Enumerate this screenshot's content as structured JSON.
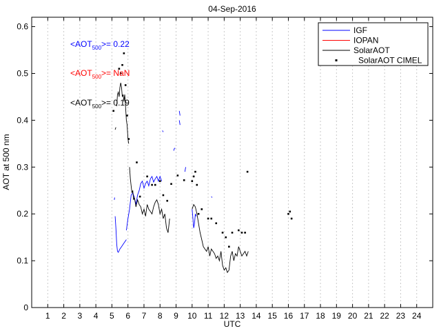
{
  "chart_data": {
    "type": "line",
    "title": "04-Sep-2016",
    "xlabel": "UTC",
    "ylabel": "AOT at 500 nm",
    "xlim": [
      0,
      25
    ],
    "ylim": [
      0,
      0.62
    ],
    "xticks": [
      1,
      2,
      3,
      4,
      5,
      6,
      7,
      8,
      9,
      10,
      11,
      12,
      13,
      14,
      15,
      16,
      17,
      18,
      19,
      20,
      21,
      22,
      23,
      24
    ],
    "yticks": [
      0,
      0.1,
      0.2,
      0.3,
      0.4,
      0.5,
      0.6
    ],
    "ytick_labels": [
      "0",
      "0.1",
      "0.2",
      "0.3",
      "0.4",
      "0.5",
      "0.6"
    ],
    "grid": "vertical dashed",
    "legend_position": "top-right",
    "series": [
      {
        "name": "IGF",
        "color": "#0000ff",
        "style": "line",
        "segments": [
          [
            [
              5.15,
              0.23
            ],
            [
              5.17,
              0.235
            ]
          ],
          [
            [
              5.2,
              0.195
            ],
            [
              5.25,
              0.17
            ],
            [
              5.3,
              0.135
            ],
            [
              5.35,
              0.12
            ],
            [
              5.4,
              0.118
            ],
            [
              5.5,
              0.125
            ],
            [
              5.6,
              0.13
            ],
            [
              5.7,
              0.135
            ],
            [
              5.8,
              0.14
            ],
            [
              5.9,
              0.145
            ]
          ],
          [
            [
              5.9,
              0.165
            ],
            [
              6.0,
              0.19
            ],
            [
              6.1,
              0.21
            ],
            [
              6.2,
              0.24
            ],
            [
              6.3,
              0.245
            ],
            [
              6.4,
              0.235
            ],
            [
              6.5,
              0.22
            ],
            [
              6.6,
              0.24
            ],
            [
              6.7,
              0.25
            ],
            [
              6.8,
              0.265
            ],
            [
              6.9,
              0.27
            ],
            [
              7.0,
              0.255
            ],
            [
              7.1,
              0.265
            ],
            [
              7.2,
              0.27
            ],
            [
              7.3,
              0.26
            ],
            [
              7.4,
              0.275
            ],
            [
              7.5,
              0.28
            ],
            [
              7.6,
              0.268
            ],
            [
              7.7,
              0.275
            ],
            [
              7.8,
              0.28
            ],
            [
              7.9,
              0.27
            ],
            [
              8.0,
              0.28
            ],
            [
              8.1,
              0.27
            ]
          ],
          [
            [
              8.15,
              0.378
            ],
            [
              8.2,
              0.375
            ]
          ],
          [
            [
              8.85,
              0.335
            ],
            [
              8.9,
              0.34
            ],
            [
              8.95,
              0.34
            ]
          ],
          [
            [
              9.2,
              0.42
            ],
            [
              9.25,
              0.41
            ]
          ],
          [
            [
              9.2,
              0.4
            ],
            [
              9.25,
              0.39
            ]
          ],
          [
            [
              9.55,
              0.29
            ],
            [
              9.6,
              0.3
            ]
          ],
          [
            [
              10.0,
              0.21
            ],
            [
              10.05,
              0.19
            ],
            [
              10.1,
              0.17
            ],
            [
              10.15,
              0.18
            ],
            [
              10.2,
              0.2
            ],
            [
              10.25,
              0.195
            ]
          ],
          [
            [
              11.2,
              0.237
            ],
            [
              11.25,
              0.235
            ]
          ]
        ]
      },
      {
        "name": "IOPAN",
        "color": "#ff0000",
        "style": "line",
        "segments": []
      },
      {
        "name": "SolarAOT",
        "color": "#000000",
        "style": "line",
        "segments": [
          [
            [
              5.2,
              0.38
            ],
            [
              5.25,
              0.385
            ]
          ],
          [
            [
              5.3,
              0.43
            ],
            [
              5.35,
              0.455
            ],
            [
              5.4,
              0.46
            ],
            [
              5.45,
              0.45
            ],
            [
              5.5,
              0.47
            ],
            [
              5.55,
              0.48
            ],
            [
              5.6,
              0.47
            ],
            [
              5.65,
              0.45
            ],
            [
              5.7,
              0.455
            ],
            [
              5.75,
              0.44
            ],
            [
              5.8,
              0.455
            ],
            [
              5.85,
              0.43
            ],
            [
              5.9,
              0.4
            ],
            [
              5.95,
              0.39
            ],
            [
              6.0,
              0.36
            ],
            [
              6.05,
              0.35
            ]
          ],
          [
            [
              6.1,
              0.3
            ],
            [
              6.15,
              0.275
            ],
            [
              6.2,
              0.26
            ],
            [
              6.25,
              0.245
            ],
            [
              6.3,
              0.25
            ],
            [
              6.35,
              0.23
            ],
            [
              6.4,
              0.235
            ],
            [
              6.45,
              0.225
            ],
            [
              6.5,
              0.215
            ],
            [
              6.6,
              0.23
            ],
            [
              6.7,
              0.22
            ],
            [
              6.8,
              0.215
            ],
            [
              6.9,
              0.2
            ],
            [
              7.0,
              0.21
            ],
            [
              7.1,
              0.195
            ],
            [
              7.2,
              0.22
            ],
            [
              7.3,
              0.21
            ],
            [
              7.4,
              0.205
            ],
            [
              7.5,
              0.2
            ],
            [
              7.6,
              0.215
            ],
            [
              7.7,
              0.225
            ],
            [
              7.8,
              0.23
            ],
            [
              7.9,
              0.22
            ],
            [
              8.0,
              0.2
            ],
            [
              8.1,
              0.21
            ],
            [
              8.2,
              0.19
            ],
            [
              8.3,
              0.2
            ],
            [
              8.4,
              0.17
            ],
            [
              8.5,
              0.16
            ],
            [
              8.6,
              0.19
            ]
          ],
          [
            [
              10.0,
              0.21
            ],
            [
              10.1,
              0.22
            ],
            [
              10.2,
              0.215
            ],
            [
              10.3,
              0.2
            ],
            [
              10.4,
              0.18
            ],
            [
              10.5,
              0.16
            ],
            [
              10.6,
              0.145
            ],
            [
              10.7,
              0.13
            ],
            [
              10.8,
              0.125
            ],
            [
              10.9,
              0.12
            ],
            [
              11.0,
              0.13
            ],
            [
              11.1,
              0.11
            ],
            [
              11.2,
              0.125
            ],
            [
              11.3,
              0.12
            ],
            [
              11.4,
              0.115
            ],
            [
              11.5,
              0.105
            ],
            [
              11.6,
              0.11
            ],
            [
              11.7,
              0.1
            ],
            [
              11.8,
              0.12
            ],
            [
              11.9,
              0.09
            ],
            [
              12.0,
              0.08
            ],
            [
              12.1,
              0.085
            ],
            [
              12.2,
              0.075
            ],
            [
              12.3,
              0.08
            ],
            [
              12.4,
              0.11
            ],
            [
              12.5,
              0.12
            ],
            [
              12.6,
              0.1
            ],
            [
              12.7,
              0.115
            ],
            [
              12.8,
              0.11
            ],
            [
              12.9,
              0.13
            ],
            [
              13.0,
              0.12
            ],
            [
              13.1,
              0.11
            ],
            [
              13.2,
              0.115
            ],
            [
              13.3,
              0.12
            ],
            [
              13.4,
              0.11
            ],
            [
              13.5,
              0.12
            ]
          ]
        ]
      },
      {
        "name": "SolarAOT CIMEL",
        "color": "#000000",
        "style": "points",
        "points": [
          [
            5.1,
            0.42
          ],
          [
            5.45,
            0.51
          ],
          [
            5.55,
            0.5
          ],
          [
            5.65,
            0.518
          ],
          [
            5.75,
            0.543
          ],
          [
            5.85,
            0.475
          ],
          [
            5.95,
            0.41
          ],
          [
            6.05,
            0.36
          ],
          [
            6.55,
            0.31
          ],
          [
            6.75,
            0.237
          ],
          [
            7.2,
            0.28
          ],
          [
            7.5,
            0.262
          ],
          [
            7.7,
            0.262
          ],
          [
            8.0,
            0.27
          ],
          [
            8.2,
            0.24
          ],
          [
            8.45,
            0.228
          ],
          [
            8.7,
            0.264
          ],
          [
            9.1,
            0.282
          ],
          [
            9.5,
            0.272
          ],
          [
            10.0,
            0.27
          ],
          [
            10.1,
            0.28
          ],
          [
            10.2,
            0.29
          ],
          [
            10.3,
            0.262
          ],
          [
            10.4,
            0.2
          ],
          [
            10.6,
            0.21
          ],
          [
            11.0,
            0.19
          ],
          [
            11.2,
            0.19
          ],
          [
            11.5,
            0.18
          ],
          [
            11.9,
            0.16
          ],
          [
            12.1,
            0.15
          ],
          [
            12.3,
            0.13
          ],
          [
            12.5,
            0.16
          ],
          [
            12.9,
            0.165
          ],
          [
            13.1,
            0.16
          ],
          [
            13.3,
            0.16
          ],
          [
            13.45,
            0.29
          ],
          [
            16.0,
            0.2
          ],
          [
            16.1,
            0.205
          ],
          [
            16.2,
            0.19
          ]
        ]
      }
    ],
    "annotations": [
      {
        "prefix": "<AOT",
        "sub": "500",
        "suffix": ">= 0.22",
        "color": "#0000ff"
      },
      {
        "prefix": "<AOT",
        "sub": "500",
        "suffix": ">= NaN",
        "color": "#ff0000"
      },
      {
        "prefix": "<AOT",
        "sub": "500",
        "suffix": ">= 0.19",
        "color": "#000000"
      }
    ]
  }
}
